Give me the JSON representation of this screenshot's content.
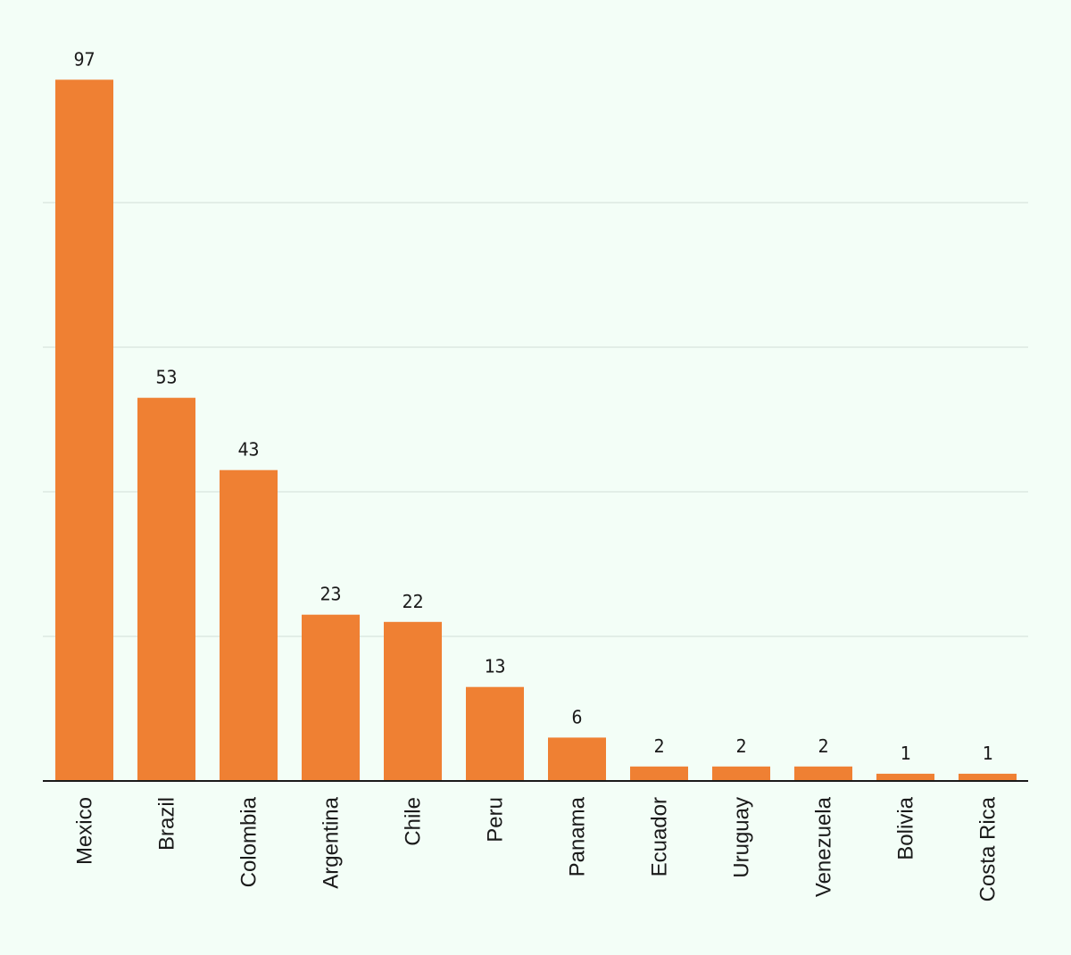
{
  "chart_data": {
    "type": "bar",
    "categories": [
      "Mexico",
      "Brazil",
      "Colombia",
      "Argentina",
      "Chile",
      "Peru",
      "Panama",
      "Ecuador",
      "Uruguay",
      "Venezuela",
      "Bolivia",
      "Costa Rica"
    ],
    "values": [
      97,
      53,
      43,
      23,
      22,
      13,
      6,
      2,
      2,
      2,
      1,
      1
    ],
    "ylim": [
      0,
      100
    ],
    "grid": true,
    "gridlines_at": [
      20,
      40,
      60,
      80
    ],
    "y_tick_labels_shown": false,
    "data_labels_shown": true,
    "colors": {
      "bar": "#ef8033",
      "background": "#f3fef7",
      "grid": "#dce8e2",
      "axis": "#1a1a1a",
      "text": "#1a1a1a"
    }
  }
}
